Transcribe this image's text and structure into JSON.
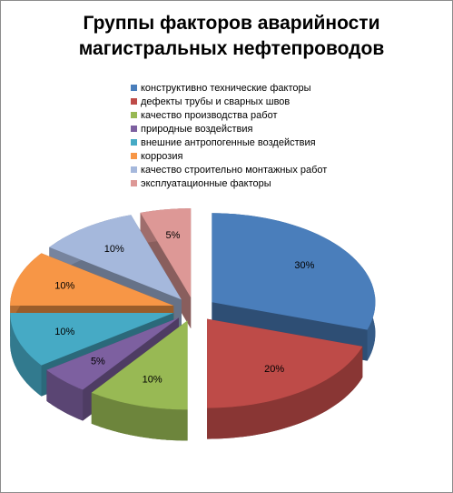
{
  "chart_data": {
    "type": "pie3d",
    "title_lines": [
      "Группы факторов аварийности",
      "магистральных нефтепроводов"
    ],
    "categories": [
      "конструктивно технические факторы",
      "дефекты трубы и сварных швов",
      "качество производства работ",
      "природные воздействия",
      "внешние антропогенные воздействия",
      "коррозия",
      "качество строительно монтажных работ",
      "эксплуатационные факторы"
    ],
    "values": [
      30,
      20,
      10,
      5,
      10,
      10,
      10,
      5
    ],
    "value_labels": [
      "30%",
      "20%",
      "10%",
      "5%",
      "10%",
      "10%",
      "10%",
      "5%"
    ],
    "colors": [
      "#4a7ebb",
      "#be4b48",
      "#98b954",
      "#7d60a0",
      "#46aac5",
      "#f79646",
      "#a5b8dc",
      "#dd9896"
    ],
    "legend": "top-right"
  }
}
